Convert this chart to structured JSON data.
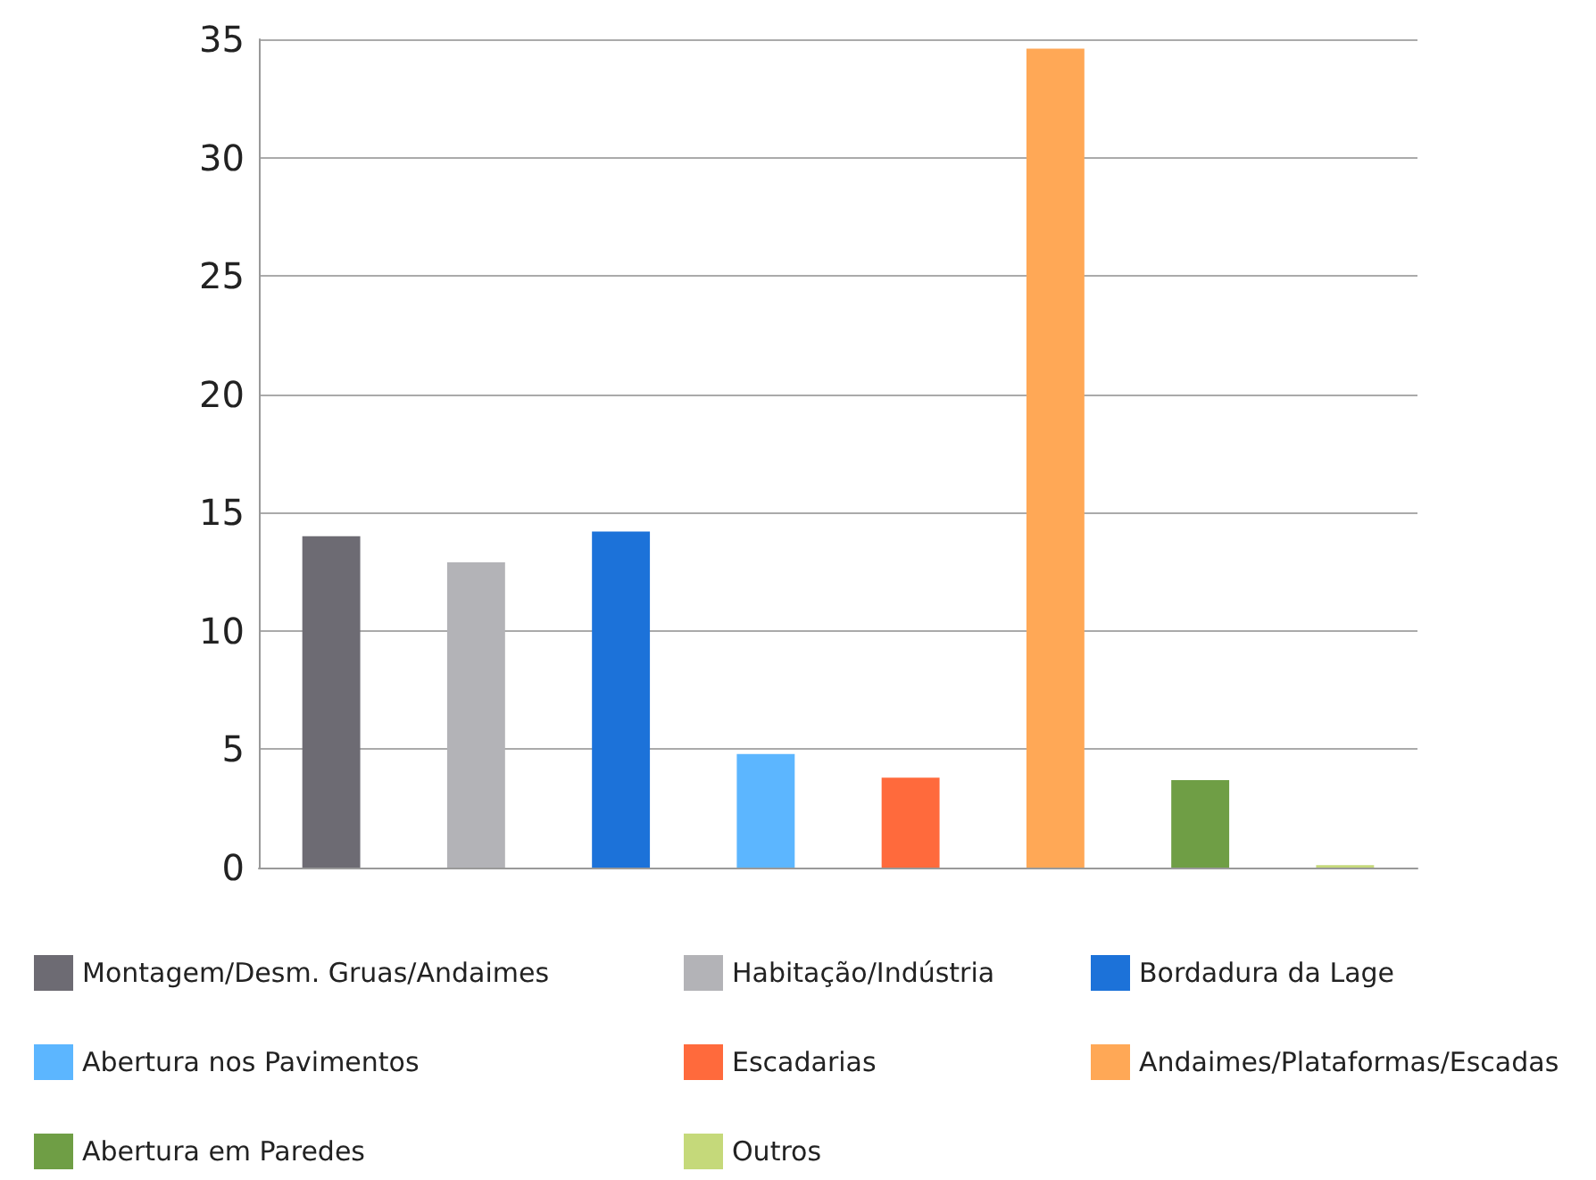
{
  "chart_data": {
    "type": "bar",
    "categories": [
      null,
      null,
      null,
      null,
      null,
      null,
      null,
      null
    ],
    "series": [
      {
        "name": "Montagem/Desm. Gruas/Andaimes",
        "color": "#6d6b73",
        "values": [
          14.0,
          null,
          null,
          null,
          null,
          null,
          null,
          null
        ]
      },
      {
        "name": "Habitação/Indústria",
        "color": "#b3b3b7",
        "values": [
          null,
          12.9,
          null,
          null,
          null,
          null,
          null,
          null
        ]
      },
      {
        "name": "Bordadura da Lage",
        "color": "#1c72d9",
        "values": [
          null,
          null,
          14.2,
          null,
          null,
          null,
          null,
          null
        ]
      },
      {
        "name": "Abertura nos Pavimentos",
        "color": "#5cb6ff",
        "values": [
          null,
          null,
          null,
          4.8,
          null,
          null,
          null,
          null
        ]
      },
      {
        "name": "Escadarias",
        "color": "#ff6a3c",
        "values": [
          null,
          null,
          null,
          null,
          3.8,
          null,
          null,
          null
        ]
      },
      {
        "name": "Andaimes/Plataformas/Escadas",
        "color": "#ffa856",
        "values": [
          null,
          null,
          null,
          null,
          null,
          34.6,
          null,
          null
        ]
      },
      {
        "name": "Abertura em Paredes",
        "color": "#6f9e45",
        "values": [
          null,
          null,
          null,
          null,
          null,
          null,
          3.7,
          null
        ]
      },
      {
        "name": "Outros",
        "color": "#c5d97a",
        "values": [
          null,
          null,
          null,
          null,
          null,
          null,
          null,
          0.1
        ]
      }
    ],
    "ylim": [
      0,
      35
    ],
    "yticks": [
      0,
      5,
      10,
      15,
      20,
      25,
      30,
      35
    ],
    "grid": "y",
    "legend": "bottom",
    "tick_labels": "y"
  }
}
